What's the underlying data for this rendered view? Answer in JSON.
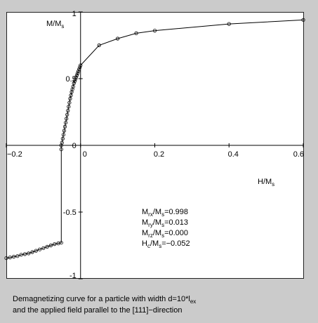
{
  "chart_data": {
    "type": "scatter",
    "xlabel": "H/M",
    "xlabel_sub": "s",
    "ylabel": "M/M",
    "ylabel_sub": "s",
    "xlim": [
      -0.2,
      0.6
    ],
    "ylim": [
      -1,
      1
    ],
    "x_ticks": [
      "−0.2",
      "0",
      "0.2",
      "0.4",
      "0.6"
    ],
    "x_tick_values": [
      -0.2,
      0,
      0.2,
      0.4,
      0.6
    ],
    "y_ticks": [
      "-1",
      "-0.5",
      "0",
      "0.5",
      "1"
    ],
    "y_tick_values": [
      -1,
      -0.5,
      0,
      0.5,
      1
    ],
    "grid": false,
    "series": [
      {
        "points": [
          [
            0.6,
            0.94
          ],
          [
            0.4,
            0.91
          ],
          [
            0.2,
            0.86
          ],
          [
            0.15,
            0.84
          ],
          [
            0.1,
            0.8
          ],
          [
            0.05,
            0.75
          ],
          [
            0.0,
            0.6
          ],
          [
            -0.002,
            0.585
          ],
          [
            -0.004,
            0.57
          ],
          [
            -0.006,
            0.555
          ],
          [
            -0.008,
            0.54
          ],
          [
            -0.01,
            0.525
          ],
          [
            -0.012,
            0.51
          ],
          [
            -0.014,
            0.495
          ],
          [
            -0.016,
            0.48
          ],
          [
            -0.018,
            0.465
          ],
          [
            -0.02,
            0.44
          ],
          [
            -0.022,
            0.42
          ],
          [
            -0.024,
            0.4
          ],
          [
            -0.026,
            0.375
          ],
          [
            -0.028,
            0.35
          ],
          [
            -0.03,
            0.32
          ],
          [
            -0.032,
            0.29
          ],
          [
            -0.034,
            0.26
          ],
          [
            -0.036,
            0.23
          ],
          [
            -0.038,
            0.2
          ],
          [
            -0.04,
            0.17
          ],
          [
            -0.042,
            0.14
          ],
          [
            -0.044,
            0.11
          ],
          [
            -0.046,
            0.08
          ],
          [
            -0.048,
            0.05
          ],
          [
            -0.05,
            0.02
          ],
          [
            -0.052,
            0.0
          ],
          [
            -0.052,
            -0.03
          ],
          [
            -0.052,
            -0.73
          ],
          [
            -0.06,
            -0.735
          ],
          [
            -0.07,
            -0.74
          ],
          [
            -0.08,
            -0.75
          ],
          [
            -0.09,
            -0.76
          ],
          [
            -0.1,
            -0.77
          ],
          [
            -0.11,
            -0.78
          ],
          [
            -0.12,
            -0.79
          ],
          [
            -0.13,
            -0.8
          ],
          [
            -0.14,
            -0.81
          ],
          [
            -0.15,
            -0.815
          ],
          [
            -0.16,
            -0.82
          ],
          [
            -0.17,
            -0.83
          ],
          [
            -0.18,
            -0.835
          ],
          [
            -0.19,
            -0.84
          ],
          [
            -0.2,
            -0.845
          ]
        ]
      }
    ]
  },
  "annotation": {
    "line1_main": "M",
    "line1_sub": "rx",
    "line1_mid": "/M",
    "line1_sub2": "s",
    "line1_val": "=0.998",
    "line2_main": "M",
    "line2_sub": "ry",
    "line2_mid": "/M",
    "line2_sub2": "s",
    "line2_val": "=0.013",
    "line3_main": "M",
    "line3_sub": "rz",
    "line3_mid": "/M",
    "line3_sub2": "s",
    "line3_val": "=0.000",
    "line4_main": "H",
    "line4_sub": "c",
    "line4_mid": "/M",
    "line4_sub2": "s",
    "line4_val": "=−0.052"
  },
  "caption": {
    "line1_main": "Demagnetizing curve for a particle with width d=10*l",
    "line1_sub": "ex",
    "line2": "and the applied field parallel to the [111]−direction"
  }
}
